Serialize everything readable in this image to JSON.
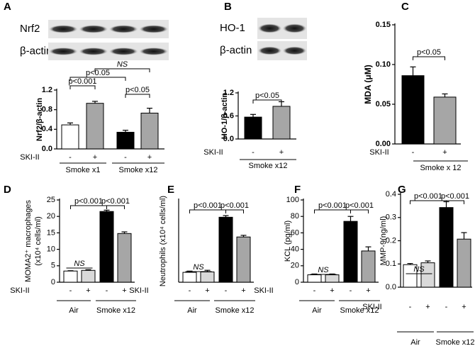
{
  "chart_data": [
    {
      "type": "bar",
      "panel": "A",
      "blot_labels": [
        "Nrf2",
        "β-actin"
      ],
      "ylabel": [
        "Nrf2/β-actin"
      ],
      "ylim": [
        0,
        1.2
      ],
      "yticks": [
        {
          "value": 0,
          "label": "0.0"
        },
        0.4,
        0.8,
        1.2
      ],
      "values": [
        0.49,
        0.93,
        0.34,
        0.73
      ],
      "errors": [
        0.04,
        0.04,
        0.04,
        0.1
      ],
      "colors": [
        "#ffffff",
        "#a6a6a6",
        "#000000",
        "#a6a6a6"
      ],
      "treatment_label": "SKI-II",
      "treatment": [
        "-",
        "+",
        "-",
        "+"
      ],
      "groups": [
        "Smoke x1",
        "Smoke x12"
      ],
      "annotations": [
        "p<0.001",
        "p<0.05",
        "NS",
        "p<0.05"
      ]
    },
    {
      "type": "bar",
      "panel": "B",
      "blot_labels": [
        "HO-1",
        "β-actin"
      ],
      "ylabel": [
        "HO-1/β-actin"
      ],
      "ylim": [
        0,
        1.2
      ],
      "yticks": [
        {
          "value": 0,
          "label": "0.0"
        },
        0.6,
        1.2
      ],
      "values": [
        0.57,
        0.85
      ],
      "errors": [
        0.07,
        0.12
      ],
      "colors": [
        "#000000",
        "#a6a6a6"
      ],
      "treatment_label": "SKI-II",
      "treatment": [
        "-",
        "+"
      ],
      "groups": [
        "Smoke x12"
      ],
      "annotations": [
        "p<0.05"
      ]
    },
    {
      "type": "bar",
      "panel": "C",
      "ylabel": [
        "MDA (μM)"
      ],
      "ylim": [
        0,
        0.15
      ],
      "yticks": [
        {
          "value": 0,
          "label": "0.00"
        },
        {
          "value": 0.05,
          "label": "0.05"
        },
        {
          "value": 0.1,
          "label": "0.10"
        },
        {
          "value": 0.15,
          "label": "0.15"
        }
      ],
      "values": [
        0.086,
        0.059
      ],
      "errors": [
        0.011,
        0.004
      ],
      "colors": [
        "#000000",
        "#a6a6a6"
      ],
      "treatment_label": "SKI-II",
      "treatment": [
        "-",
        "+"
      ],
      "groups": [
        "Smoke x 12"
      ],
      "annotations": [
        "p<0.05"
      ]
    },
    {
      "type": "bar",
      "panel": "D",
      "ylabel": [
        "MOMA2⁺ macrophages",
        "(x10⁴ cells/ml)"
      ],
      "ylim": [
        0,
        25
      ],
      "yticks": [
        0,
        5,
        10,
        15,
        20,
        25
      ],
      "values": [
        3.4,
        3.6,
        21.5,
        14.8
      ],
      "errors": [
        0.1,
        0.2,
        0.4,
        0.5
      ],
      "colors": [
        "#ffffff",
        "#d9d9d9",
        "#000000",
        "#a6a6a6"
      ],
      "treatment_label": "SKI-II",
      "treatment": [
        "-",
        "+",
        "-",
        "+"
      ],
      "groups": [
        "Air",
        "Smoke x12"
      ],
      "annotations": [
        "p<0.001",
        "p<0.001",
        "NS"
      ]
    },
    {
      "type": "bar",
      "panel": "E",
      "ylabel": [
        "Neutrophils (x10⁴ cells/ml)"
      ],
      "ylim": [
        0,
        1
      ],
      "yticks": [],
      "values": [
        0.12,
        0.125,
        0.79,
        0.55
      ],
      "errors": [
        0.015,
        0.02,
        0.02,
        0.02
      ],
      "colors": [
        "#ffffff",
        "#d9d9d9",
        "#000000",
        "#a6a6a6"
      ],
      "treatment_label": "SKI-II",
      "treatment": [
        "-",
        "+",
        "-",
        "+"
      ],
      "groups": [
        "Air",
        "Smoke x12"
      ],
      "annotations": [
        "p<0.001",
        "p<0.001",
        "NS"
      ]
    },
    {
      "type": "bar",
      "panel": "F",
      "ylabel": [
        "KCL (pg/ml)"
      ],
      "ylim": [
        0,
        100
      ],
      "yticks": [
        0,
        20,
        40,
        60,
        80,
        100
      ],
      "values": [
        9,
        9,
        74,
        38
      ],
      "errors": [
        1,
        1,
        6,
        5
      ],
      "colors": [
        "#ffffff",
        "#d9d9d9",
        "#000000",
        "#a6a6a6"
      ],
      "treatment_label": "SKI-II",
      "treatment": [
        "-",
        "+",
        "-",
        "+"
      ],
      "groups": [
        "Air",
        "Smoke x12"
      ],
      "annotations": [
        "p<0.001",
        "p<0.001",
        "NS"
      ]
    },
    {
      "type": "bar",
      "panel": "G",
      "ylabel": [
        "MMP-9(ng/ml)"
      ],
      "ylim": [
        0,
        0.4
      ],
      "yticks": [
        {
          "value": 0,
          "label": "0.0"
        },
        0.1,
        0.2,
        0.3,
        0.4
      ],
      "values": [
        0.097,
        0.105,
        0.343,
        0.207
      ],
      "errors": [
        0.005,
        0.008,
        0.025,
        0.028
      ],
      "colors": [
        "#ffffff",
        "#d9d9d9",
        "#000000",
        "#a6a6a6"
      ],
      "treatment_label": "SKI-II",
      "treatment": [
        "-",
        "+",
        "-",
        "+"
      ],
      "groups": [
        "Air",
        "Smoke x12"
      ],
      "annotations": [
        "p<0.001",
        "p<0.001",
        "NS"
      ]
    }
  ]
}
